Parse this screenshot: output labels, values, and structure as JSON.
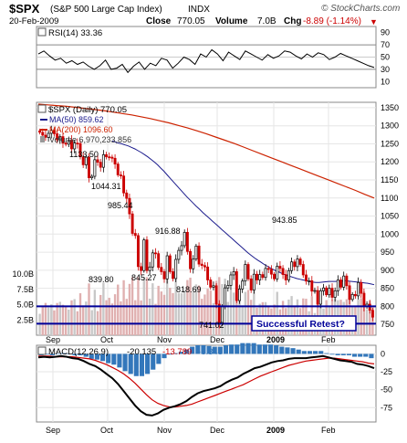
{
  "header": {
    "symbol": "$SPX",
    "name": "(S&P 500 Large Cap Index)",
    "exchange": "INDX",
    "date": "20-Feb-2009",
    "close_label": "Close",
    "close_value": "770.05",
    "volume_label": "Volume",
    "volume_value": "7.0B",
    "chg_label": "Chg",
    "chg_value": "-8.89 (-1.14%)",
    "chg_arrow": "▼",
    "watermark": "© StockCharts.com",
    "colors": {
      "down": "#cc0000",
      "text": "#000000"
    }
  },
  "rsi": {
    "label": "RSI(14) 33.36",
    "ticks": [
      "90",
      "70",
      "50",
      "30",
      "10"
    ]
  },
  "main": {
    "legend": {
      "title": "$SPX (Daily) 770.05",
      "ma50": "MA(50) 859.62",
      "ma200": "MA(200) 1096.60",
      "volume": "Volume 6,970,233,856"
    },
    "annotation": "Successful Retest?",
    "callout_labels": [
      "1133.50",
      "1044.31",
      "985.44",
      "916.88",
      "839.80",
      "845.27",
      "818.69",
      "741.02",
      "943.85"
    ],
    "volume_ticks": [
      "10.0B",
      "7.5B",
      "5.0B",
      "2.5B"
    ],
    "colors": {
      "ma50": "#1a1a8c",
      "ma200": "#cc2200",
      "up": "#000000",
      "down": "#cc0000",
      "volume": "#c8c8c8",
      "support": "#000099"
    }
  },
  "x_axis": {
    "labels": [
      "Sep",
      "Oct",
      "Nov",
      "Dec",
      "2009",
      "Feb"
    ]
  },
  "macd": {
    "label_prefix": "MACD(12,26,9)",
    "label_macd": "-20.135",
    "label_signal": "-13.789",
    "label_hist": "-6.346",
    "ticks": [
      "0",
      "-25",
      "-50",
      "-75"
    ],
    "colors": {
      "macd": "#000000",
      "signal": "#cc0000",
      "hist": "#3377bb"
    }
  },
  "chart_data": {
    "type": "candlestick",
    "title": "$SPX (Daily) 770.05",
    "y_ticks": [
      1350,
      1300,
      1250,
      1200,
      1150,
      1100,
      1050,
      1000,
      950,
      900,
      850,
      800,
      750
    ],
    "ylim": [
      720,
      1365
    ],
    "support_levels": [
      800,
      752
    ],
    "x_labels": [
      "Sep",
      "Oct",
      "Nov",
      "Dec",
      "2009",
      "Feb"
    ],
    "series_close": [
      1282,
      1274,
      1268,
      1279,
      1287,
      1278,
      1261,
      1270,
      1252,
      1249,
      1260,
      1236,
      1252,
      1251,
      1214,
      1192,
      1213,
      1156,
      1160,
      1206,
      1199,
      1185,
      1220,
      1214,
      1213,
      1210,
      1194,
      1164,
      1161,
      1114,
      1099,
      1056,
      1002,
      996,
      910,
      899,
      984,
      899,
      909,
      948,
      946,
      908,
      896,
      876,
      940,
      896,
      877,
      930,
      955,
      968,
      1005,
      952,
      904,
      931,
      967,
      917,
      913,
      909,
      873,
      853,
      857,
      806,
      752,
      800,
      851,
      858,
      887,
      896,
      816,
      848,
      870,
      916,
      876,
      845,
      889,
      873,
      888,
      880,
      905,
      903,
      889,
      876,
      911,
      905,
      888,
      873,
      899,
      923,
      910,
      931,
      916,
      887,
      870,
      871,
      842,
      844,
      806,
      843,
      851,
      832,
      850,
      825,
      843,
      873,
      853,
      884,
      857,
      819,
      833,
      829,
      866,
      836,
      800,
      806,
      789,
      770
    ],
    "ma50": [
      1258,
      1255,
      1252,
      1250,
      1247,
      1244,
      1240,
      1236,
      1231,
      1226,
      1220,
      1214,
      1207,
      1200,
      1192,
      1183,
      1174,
      1164,
      1154,
      1144,
      1134,
      1124,
      1114,
      1104,
      1095,
      1086,
      1077,
      1069,
      1060,
      1052,
      1044,
      1036,
      1028,
      1020,
      1012,
      1004,
      996,
      988,
      980,
      972,
      964,
      956,
      948,
      941,
      934,
      928,
      922,
      916,
      911,
      906,
      901,
      897,
      893,
      889,
      886,
      883,
      880,
      877,
      875,
      873,
      871,
      869,
      867,
      866,
      866,
      867,
      868,
      869,
      869,
      869,
      870,
      870,
      871,
      870,
      869,
      868,
      867,
      866,
      865,
      864,
      862,
      860
    ],
    "ma200": [
      1360,
      1358,
      1356,
      1354,
      1351,
      1348,
      1345,
      1342,
      1338,
      1334,
      1330,
      1325,
      1320,
      1314,
      1308,
      1301,
      1294,
      1286,
      1278,
      1269,
      1260,
      1251,
      1241,
      1231,
      1221,
      1211,
      1201,
      1191,
      1181,
      1171,
      1161,
      1151,
      1141,
      1131,
      1121,
      1110,
      1100
    ],
    "macd_line": [
      -5,
      -4,
      -5,
      -4,
      -3,
      -4,
      -6,
      -7,
      -10,
      -14,
      -17,
      -22,
      -28,
      -34,
      -42,
      -52,
      -62,
      -72,
      -80,
      -85,
      -86,
      -83,
      -78,
      -75,
      -73,
      -70,
      -66,
      -60,
      -55,
      -52,
      -50,
      -48,
      -45,
      -40,
      -36,
      -33,
      -28,
      -24,
      -20,
      -18,
      -15,
      -12,
      -10,
      -9,
      -7,
      -6,
      -6,
      -6,
      -5,
      -4,
      -3,
      -5,
      -7,
      -9,
      -10,
      -11,
      -14,
      -15,
      -17,
      -20
    ],
    "macd_signal": [
      -3,
      -3,
      -3,
      -4,
      -4,
      -4,
      -4,
      -5,
      -6,
      -7,
      -9,
      -12,
      -15,
      -19,
      -23,
      -28,
      -34,
      -41,
      -49,
      -57,
      -64,
      -69,
      -72,
      -74,
      -74,
      -73,
      -72,
      -70,
      -67,
      -64,
      -61,
      -58,
      -55,
      -52,
      -49,
      -46,
      -43,
      -39,
      -35,
      -31,
      -28,
      -25,
      -22,
      -19,
      -16,
      -14,
      -12,
      -10,
      -9,
      -8,
      -7,
      -6,
      -6,
      -7,
      -8,
      -9,
      -10,
      -11,
      -13,
      -14
    ],
    "rsi": [
      55,
      60,
      52,
      45,
      48,
      40,
      44,
      38,
      42,
      35,
      30,
      36,
      45,
      30,
      32,
      38,
      25,
      35,
      42,
      30,
      40,
      36,
      48,
      45,
      32,
      40,
      50,
      46,
      38,
      55,
      50,
      62,
      55,
      44,
      58,
      52,
      46,
      60,
      55,
      50,
      45,
      54,
      48,
      52,
      60,
      58,
      52,
      47,
      55,
      50,
      57,
      54,
      46,
      50,
      56,
      52,
      48,
      44,
      40,
      36,
      33
    ]
  }
}
